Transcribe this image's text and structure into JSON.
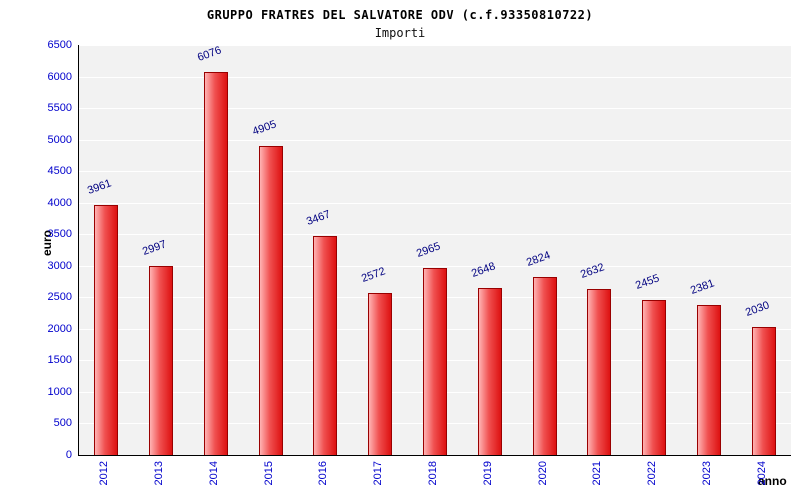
{
  "header": {
    "title": "GRUPPO FRATRES DEL SALVATORE ODV (c.f.93350810722)",
    "subtitle": "Importi"
  },
  "chart_data": {
    "type": "bar",
    "title": "GRUPPO FRATRES DEL SALVATORE ODV (c.f.93350810722)",
    "subtitle": "Importi",
    "xlabel": "anno",
    "ylabel": "euro",
    "categories": [
      "2012",
      "2013",
      "2014",
      "2015",
      "2016",
      "2017",
      "2018",
      "2019",
      "2020",
      "2021",
      "2022",
      "2023",
      "2024"
    ],
    "values": [
      3961,
      2997,
      6076,
      4905,
      3467,
      2572,
      2965,
      2648,
      2824,
      2632,
      2455,
      2381,
      2030
    ],
    "ylim": [
      0,
      6500
    ],
    "ytick_step": 500,
    "yticks": [
      0,
      500,
      1000,
      1500,
      2000,
      2500,
      3000,
      3500,
      4000,
      4500,
      5000,
      5500,
      6000,
      6500
    ],
    "grid": true,
    "legend_position": "none",
    "colors": {
      "bar_fill_light": "#ffb3b3",
      "bar_fill_dark": "#dd1111",
      "bar_border": "#990000",
      "tick_label": "#0000cc",
      "value_label": "#000080",
      "plot_background": "#f2f2f2",
      "gridline": "#ffffff"
    }
  }
}
